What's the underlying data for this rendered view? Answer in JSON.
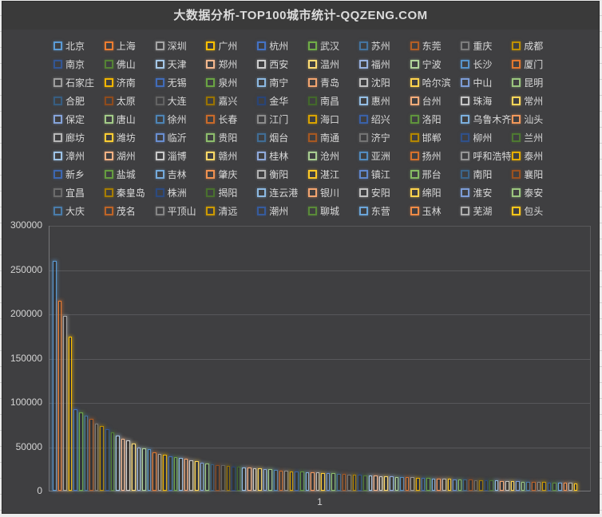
{
  "title": "大数据分析-TOP100城市统计-QQZENG.COM",
  "colors": {
    "chart_bg": "#3f3f41",
    "title_bg": "#3a3a3a",
    "text": "#d9d9d9",
    "gridline": "#58585b",
    "axis_line": "#77777a",
    "page_edge": "#ececec",
    "base_palette": [
      "#5B9BD5",
      "#ED7D31",
      "#A5A5A5",
      "#FFC000",
      "#4472C4",
      "#70AD47"
    ],
    "cycle_factors": [
      1.0,
      0.75,
      1.45,
      0.95,
      1.3,
      0.6,
      1.35,
      0.85,
      1.2,
      0.7,
      1.4,
      0.9,
      1.15,
      0.65,
      1.3,
      0.8,
      1.1
    ]
  },
  "chart_data": {
    "type": "bar",
    "title": "大数据分析-TOP100城市统计-QQZENG.COM",
    "categories": [
      "1"
    ],
    "xlabel": "",
    "ylabel": "",
    "ylim": [
      0,
      300000
    ],
    "ytick_interval": 50000,
    "yticks": [
      "0",
      "50000",
      "100000",
      "150000",
      "200000",
      "250000",
      "300000"
    ],
    "grid": true,
    "legend_position": "top",
    "bar_style": "outlined-glow",
    "series": [
      {
        "name": "北京",
        "value": 260000
      },
      {
        "name": "上海",
        "value": 215000
      },
      {
        "name": "深圳",
        "value": 198000
      },
      {
        "name": "广州",
        "value": 174000
      },
      {
        "name": "杭州",
        "value": 92000
      },
      {
        "name": "武汉",
        "value": 89000
      },
      {
        "name": "苏州",
        "value": 85000
      },
      {
        "name": "东莞",
        "value": 81000
      },
      {
        "name": "重庆",
        "value": 76000
      },
      {
        "name": "成都",
        "value": 73000
      },
      {
        "name": "南京",
        "value": 70000
      },
      {
        "name": "佛山",
        "value": 66000
      },
      {
        "name": "天津",
        "value": 62000
      },
      {
        "name": "郑州",
        "value": 59000
      },
      {
        "name": "西安",
        "value": 57000
      },
      {
        "name": "温州",
        "value": 53000
      },
      {
        "name": "福州",
        "value": 48500
      },
      {
        "name": "宁波",
        "value": 48000
      },
      {
        "name": "长沙",
        "value": 47000
      },
      {
        "name": "厦门",
        "value": 43000
      },
      {
        "name": "石家庄",
        "value": 42000
      },
      {
        "name": "济南",
        "value": 41000
      },
      {
        "name": "无锡",
        "value": 39000
      },
      {
        "name": "泉州",
        "value": 38000
      },
      {
        "name": "南宁",
        "value": 37000
      },
      {
        "name": "青岛",
        "value": 36000
      },
      {
        "name": "沈阳",
        "value": 34000
      },
      {
        "name": "哈尔滨",
        "value": 33000
      },
      {
        "name": "中山",
        "value": 31500
      },
      {
        "name": "昆明",
        "value": 30500
      },
      {
        "name": "合肥",
        "value": 29500
      },
      {
        "name": "太原",
        "value": 29000
      },
      {
        "name": "大连",
        "value": 28500
      },
      {
        "name": "嘉兴",
        "value": 28000
      },
      {
        "name": "金华",
        "value": 27500
      },
      {
        "name": "南昌",
        "value": 27000
      },
      {
        "name": "惠州",
        "value": 26500
      },
      {
        "name": "台州",
        "value": 26000
      },
      {
        "name": "珠海",
        "value": 25500
      },
      {
        "name": "常州",
        "value": 25000
      },
      {
        "name": "保定",
        "value": 24500
      },
      {
        "name": "唐山",
        "value": 24000
      },
      {
        "name": "徐州",
        "value": 23500
      },
      {
        "name": "长春",
        "value": 23000
      },
      {
        "name": "江门",
        "value": 22500
      },
      {
        "name": "海口",
        "value": 22000
      },
      {
        "name": "绍兴",
        "value": 21800
      },
      {
        "name": "洛阳",
        "value": 21500
      },
      {
        "name": "乌鲁木齐",
        "value": 21200
      },
      {
        "name": "汕头",
        "value": 20800
      },
      {
        "name": "廊坊",
        "value": 20500
      },
      {
        "name": "潍坊",
        "value": 20200
      },
      {
        "name": "临沂",
        "value": 19800
      },
      {
        "name": "贵阳",
        "value": 19500
      },
      {
        "name": "烟台",
        "value": 19200
      },
      {
        "name": "南通",
        "value": 18800
      },
      {
        "name": "济宁",
        "value": 18500
      },
      {
        "name": "邯郸",
        "value": 18200
      },
      {
        "name": "柳州",
        "value": 17800
      },
      {
        "name": "兰州",
        "value": 17500
      },
      {
        "name": "漳州",
        "value": 17200
      },
      {
        "name": "湖州",
        "value": 16800
      },
      {
        "name": "淄博",
        "value": 16500
      },
      {
        "name": "赣州",
        "value": 16200
      },
      {
        "name": "桂林",
        "value": 16000
      },
      {
        "name": "沧州",
        "value": 15800
      },
      {
        "name": "亚洲",
        "value": 15500
      },
      {
        "name": "扬州",
        "value": 15200
      },
      {
        "name": "呼和浩特",
        "value": 15000
      },
      {
        "name": "泰州",
        "value": 14800
      },
      {
        "name": "新乡",
        "value": 14500
      },
      {
        "name": "盐城",
        "value": 14200
      },
      {
        "name": "吉林",
        "value": 14000
      },
      {
        "name": "肇庆",
        "value": 13800
      },
      {
        "name": "衡阳",
        "value": 13500
      },
      {
        "name": "湛江",
        "value": 13200
      },
      {
        "name": "镇江",
        "value": 13000
      },
      {
        "name": "邢台",
        "value": 12800
      },
      {
        "name": "南阳",
        "value": 12600
      },
      {
        "name": "襄阳",
        "value": 12400
      },
      {
        "name": "宜昌",
        "value": 12200
      },
      {
        "name": "秦皇岛",
        "value": 12000
      },
      {
        "name": "株洲",
        "value": 11800
      },
      {
        "name": "揭阳",
        "value": 11600
      },
      {
        "name": "连云港",
        "value": 11400
      },
      {
        "name": "银川",
        "value": 11200
      },
      {
        "name": "安阳",
        "value": 11000
      },
      {
        "name": "绵阳",
        "value": 10800
      },
      {
        "name": "淮安",
        "value": 10600
      },
      {
        "name": "泰安",
        "value": 10400
      },
      {
        "name": "大庆",
        "value": 10200
      },
      {
        "name": "茂名",
        "value": 10000
      },
      {
        "name": "平顶山",
        "value": 9800
      },
      {
        "name": "清远",
        "value": 9600
      },
      {
        "name": "潮州",
        "value": 9400
      },
      {
        "name": "聊城",
        "value": 9200
      },
      {
        "name": "东营",
        "value": 9000
      },
      {
        "name": "玉林",
        "value": 8800
      },
      {
        "name": "芜湖",
        "value": 8600
      },
      {
        "name": "包头",
        "value": 8500
      }
    ]
  }
}
